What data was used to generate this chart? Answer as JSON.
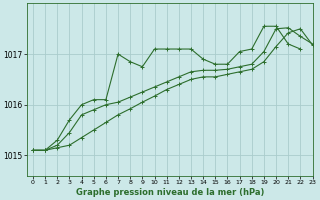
{
  "title": "Graphe pression niveau de la mer (hPa)",
  "background_color": "#cce8e8",
  "grid_color": "#aacccc",
  "line_color": "#2d6e2d",
  "xlim": [
    -0.5,
    23
  ],
  "ylim": [
    1014.6,
    1018.0
  ],
  "yticks": [
    1015,
    1016,
    1017
  ],
  "xticks": [
    0,
    1,
    2,
    3,
    4,
    5,
    6,
    7,
    8,
    9,
    10,
    11,
    12,
    13,
    14,
    15,
    16,
    17,
    18,
    19,
    20,
    21,
    22,
    23
  ],
  "series": [
    {
      "x": [
        0,
        1,
        2,
        3,
        4,
        5,
        6,
        7,
        8,
        9,
        10,
        11,
        12,
        13,
        14,
        15,
        16,
        17,
        18,
        19,
        20,
        21,
        22
      ],
      "y": [
        1015.1,
        1015.1,
        1015.3,
        1015.7,
        1016.0,
        1016.1,
        1016.1,
        1017.0,
        1016.85,
        1016.75,
        1017.1,
        1017.1,
        1017.1,
        1017.1,
        1016.9,
        1016.8,
        1016.8,
        1017.05,
        1017.1,
        1017.55,
        1017.55,
        1017.2,
        1017.1
      ]
    },
    {
      "x": [
        0,
        1,
        2,
        3,
        4,
        5,
        6,
        7,
        8,
        9,
        10,
        11,
        12,
        13,
        14,
        15,
        16,
        17,
        18,
        19,
        20,
        21,
        22,
        23
      ],
      "y": [
        1015.1,
        1015.1,
        1015.2,
        1015.45,
        1015.8,
        1015.9,
        1016.0,
        1016.05,
        1016.15,
        1016.25,
        1016.35,
        1016.45,
        1016.55,
        1016.65,
        1016.68,
        1016.68,
        1016.7,
        1016.75,
        1016.8,
        1017.05,
        1017.5,
        1017.52,
        1017.35,
        1017.2
      ]
    },
    {
      "x": [
        0,
        1,
        2,
        3,
        4,
        5,
        6,
        7,
        8,
        9,
        10,
        11,
        12,
        13,
        14,
        15,
        16,
        17,
        18,
        19,
        20,
        21,
        22,
        23
      ],
      "y": [
        1015.1,
        1015.1,
        1015.15,
        1015.2,
        1015.35,
        1015.5,
        1015.65,
        1015.8,
        1015.92,
        1016.05,
        1016.17,
        1016.3,
        1016.4,
        1016.5,
        1016.55,
        1016.55,
        1016.6,
        1016.65,
        1016.7,
        1016.85,
        1017.15,
        1017.42,
        1017.5,
        1017.18
      ]
    }
  ],
  "marker": "+",
  "markersize": 3,
  "linewidth": 0.8,
  "xlabel_fontsize": 6.0,
  "xtick_fontsize": 4.5,
  "ytick_fontsize": 5.5
}
